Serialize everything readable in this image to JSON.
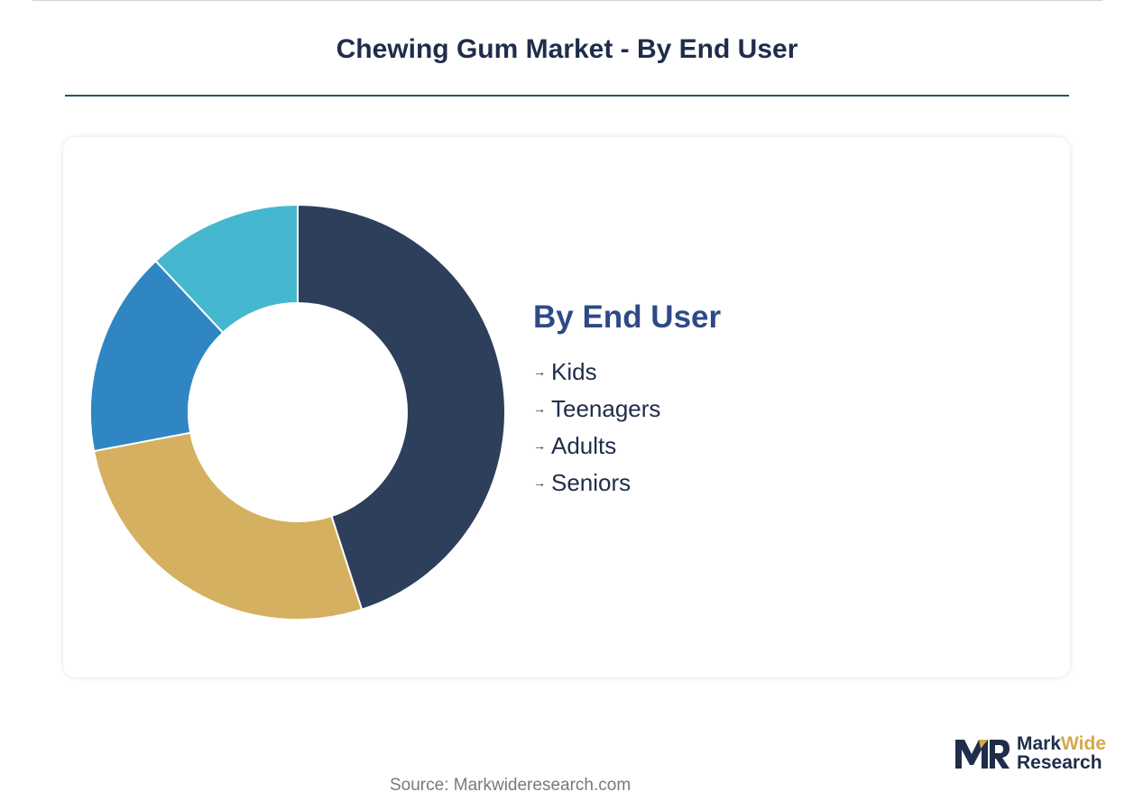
{
  "page": {
    "title": "Chewing Gum Market - By End User",
    "source": "Source: Markwideresearch.com"
  },
  "brand": {
    "name_part1": "Mark",
    "name_part2": "Wide",
    "name_line2": "Research",
    "colors": {
      "navy": "#1f2d4a",
      "gold": "#d4a94a",
      "rule": "#1d5a63"
    }
  },
  "legend": {
    "title": "By End User",
    "arrow_icon": "arrow-right-icon",
    "items": [
      "Kids",
      "Teenagers",
      "Adults",
      "Seniors"
    ]
  },
  "chart_data": {
    "type": "pie",
    "donut": true,
    "legend_position": "right",
    "slices": [
      {
        "value": 45,
        "color": "#2e3f5c"
      },
      {
        "value": 27,
        "color": "#d4b060"
      },
      {
        "value": 16,
        "color": "#2f86c2"
      },
      {
        "value": 12,
        "color": "#45b7cf"
      }
    ]
  }
}
